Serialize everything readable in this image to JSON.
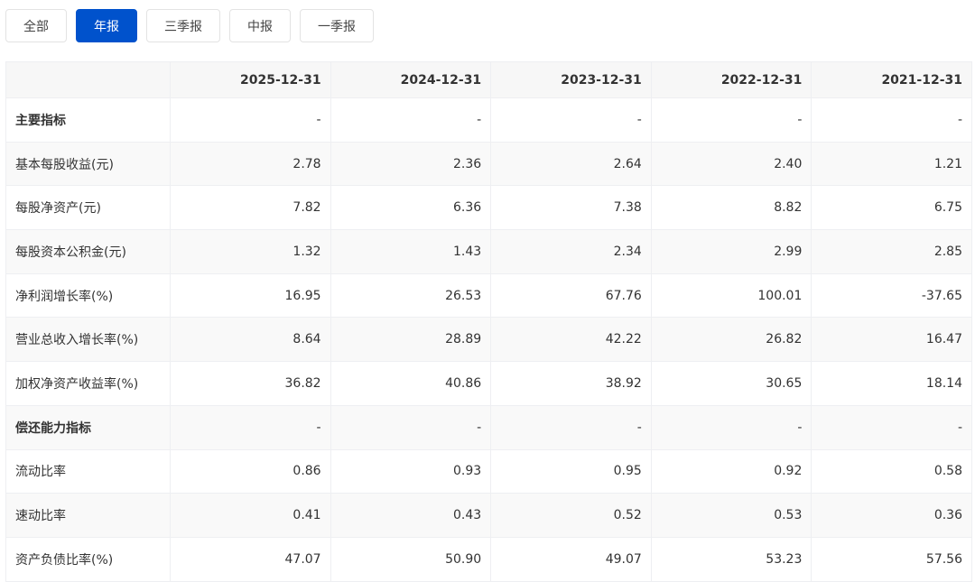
{
  "tabs": [
    {
      "label": "全部",
      "active": false
    },
    {
      "label": "年报",
      "active": true
    },
    {
      "label": "三季报",
      "active": false
    },
    {
      "label": "中报",
      "active": false
    },
    {
      "label": "一季报",
      "active": false
    }
  ],
  "accent_color": "#0052cc",
  "table": {
    "columns": [
      "",
      "2025-12-31",
      "2024-12-31",
      "2023-12-31",
      "2022-12-31",
      "2021-12-31"
    ],
    "rows": [
      {
        "label": "主要指标",
        "section": true,
        "values": [
          "-",
          "-",
          "-",
          "-",
          "-"
        ]
      },
      {
        "label": "基本每股收益(元)",
        "values": [
          "2.78",
          "2.36",
          "2.64",
          "2.40",
          "1.21"
        ]
      },
      {
        "label": "每股净资产(元)",
        "values": [
          "7.82",
          "6.36",
          "7.38",
          "8.82",
          "6.75"
        ]
      },
      {
        "label": "每股资本公积金(元)",
        "values": [
          "1.32",
          "1.43",
          "2.34",
          "2.99",
          "2.85"
        ]
      },
      {
        "label": "净利润增长率(%)",
        "values": [
          "16.95",
          "26.53",
          "67.76",
          "100.01",
          "-37.65"
        ]
      },
      {
        "label": "营业总收入增长率(%)",
        "values": [
          "8.64",
          "28.89",
          "42.22",
          "26.82",
          "16.47"
        ]
      },
      {
        "label": "加权净资产收益率(%)",
        "values": [
          "36.82",
          "40.86",
          "38.92",
          "30.65",
          "18.14"
        ]
      },
      {
        "label": "偿还能力指标",
        "section": true,
        "values": [
          "-",
          "-",
          "-",
          "-",
          "-"
        ]
      },
      {
        "label": "流动比率",
        "values": [
          "0.86",
          "0.93",
          "0.95",
          "0.92",
          "0.58"
        ]
      },
      {
        "label": "速动比率",
        "values": [
          "0.41",
          "0.43",
          "0.52",
          "0.53",
          "0.36"
        ]
      },
      {
        "label": "资产负债比率(%)",
        "values": [
          "47.07",
          "50.90",
          "49.07",
          "53.23",
          "57.56"
        ]
      }
    ]
  }
}
